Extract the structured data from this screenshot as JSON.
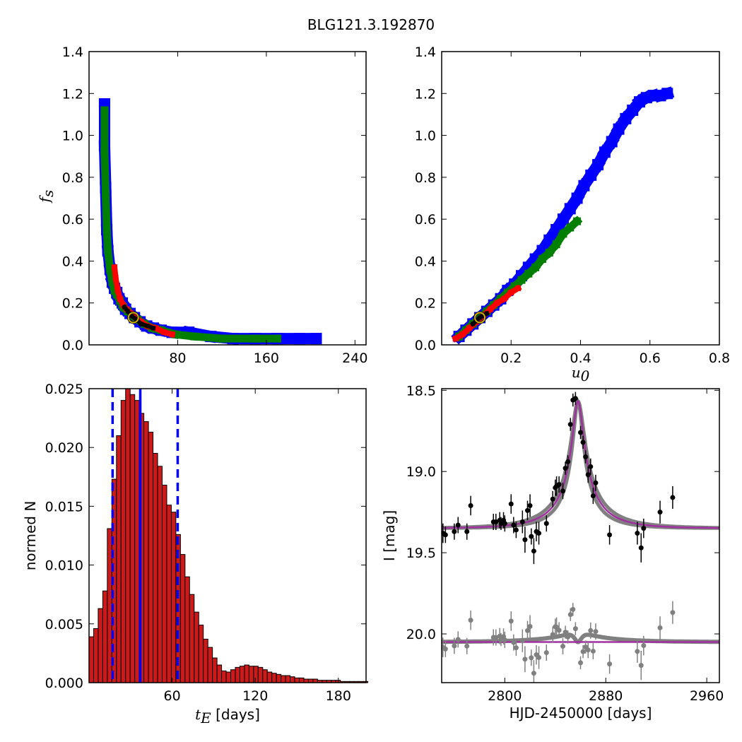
{
  "figure_title": "BLG121.3.192870",
  "colors": {
    "blue": "#0000ff",
    "green": "#007f00",
    "red": "#ff0000",
    "black": "#000000",
    "gray": "#808080",
    "magenta": "#a0309f",
    "hist_fill": "#cc1a1a",
    "gold": "#d4b000"
  },
  "chart_data": [
    {
      "id": "fs_vs_tE",
      "type": "heatmap",
      "xlabel": "",
      "ylabel": "f",
      "ylabel_sub": "s",
      "xlim": [
        0,
        250
      ],
      "ylim": [
        0,
        1.4
      ],
      "xticks": [
        80,
        160,
        240
      ],
      "yticks": [
        0.0,
        0.2,
        0.4,
        0.6,
        0.8,
        1.0,
        1.2,
        1.4
      ],
      "best_fit": [
        40,
        0.13
      ],
      "levels": [
        {
          "name": "blue",
          "color": "blue",
          "points": [
            [
              14,
              1.15
            ],
            [
              14,
              0.95
            ],
            [
              15,
              0.75
            ],
            [
              16,
              0.55
            ],
            [
              17,
              0.45
            ],
            [
              19,
              0.36
            ],
            [
              21,
              0.3
            ],
            [
              23,
              0.27
            ],
            [
              25,
              0.25
            ],
            [
              27,
              0.22
            ],
            [
              30,
              0.2
            ],
            [
              33,
              0.17
            ],
            [
              37,
              0.15
            ],
            [
              41,
              0.13
            ],
            [
              46,
              0.11
            ],
            [
              52,
              0.09
            ],
            [
              58,
              0.08
            ],
            [
              65,
              0.07
            ],
            [
              75,
              0.06
            ],
            [
              90,
              0.06
            ],
            [
              110,
              0.04
            ],
            [
              130,
              0.03
            ],
            [
              150,
              0.03
            ],
            [
              170,
              0.03
            ],
            [
              190,
              0.03
            ],
            [
              205,
              0.03
            ]
          ]
        },
        {
          "name": "green",
          "color": "green",
          "points": [
            [
              14,
              1.12
            ],
            [
              14,
              0.92
            ],
            [
              15,
              0.72
            ],
            [
              16,
              0.55
            ],
            [
              17,
              0.45
            ],
            [
              19,
              0.36
            ],
            [
              21,
              0.3
            ],
            [
              23,
              0.26
            ],
            [
              25,
              0.24
            ],
            [
              28,
              0.21
            ],
            [
              31,
              0.18
            ],
            [
              35,
              0.16
            ],
            [
              39,
              0.14
            ],
            [
              44,
              0.12
            ],
            [
              50,
              0.1
            ],
            [
              57,
              0.08
            ],
            [
              65,
              0.07
            ],
            [
              78,
              0.05
            ],
            [
              95,
              0.04
            ],
            [
              120,
              0.03
            ],
            [
              150,
              0.03
            ],
            [
              170,
              0.03
            ]
          ]
        },
        {
          "name": "red",
          "color": "red",
          "points": [
            [
              23,
              0.37
            ],
            [
              24,
              0.32
            ],
            [
              26,
              0.26
            ],
            [
              28,
              0.22
            ],
            [
              31,
              0.19
            ],
            [
              34,
              0.17
            ],
            [
              38,
              0.15
            ],
            [
              42,
              0.13
            ],
            [
              47,
              0.11
            ],
            [
              53,
              0.09
            ],
            [
              60,
              0.08
            ],
            [
              68,
              0.06
            ],
            [
              75,
              0.05
            ]
          ]
        },
        {
          "name": "black",
          "color": "black",
          "points": [
            [
              32,
              0.18
            ],
            [
              35,
              0.16
            ],
            [
              38,
              0.14
            ],
            [
              43,
              0.12
            ],
            [
              47,
              0.1
            ],
            [
              53,
              0.09
            ],
            [
              58,
              0.08
            ]
          ]
        }
      ]
    },
    {
      "id": "fs_vs_u0",
      "type": "heatmap",
      "xlabel": "u",
      "xlabel_sub": "0",
      "ylabel": "",
      "xlim": [
        0,
        0.8
      ],
      "ylim": [
        0,
        1.4
      ],
      "xticks": [
        0.2,
        0.4,
        0.6,
        0.8
      ],
      "yticks": [
        0.0,
        0.2,
        0.4,
        0.6,
        0.8,
        1.0,
        1.2,
        1.4
      ],
      "best_fit": [
        0.11,
        0.13
      ],
      "levels": [
        {
          "name": "blue",
          "color": "blue",
          "points": [
            [
              0.05,
              0.04
            ],
            [
              0.07,
              0.07
            ],
            [
              0.09,
              0.1
            ],
            [
              0.11,
              0.13
            ],
            [
              0.13,
              0.16
            ],
            [
              0.15,
              0.19
            ],
            [
              0.17,
              0.22
            ],
            [
              0.19,
              0.26
            ],
            [
              0.21,
              0.29
            ],
            [
              0.23,
              0.33
            ],
            [
              0.25,
              0.37
            ],
            [
              0.27,
              0.41
            ],
            [
              0.29,
              0.45
            ],
            [
              0.31,
              0.5
            ],
            [
              0.33,
              0.55
            ],
            [
              0.35,
              0.6
            ],
            [
              0.37,
              0.65
            ],
            [
              0.39,
              0.7
            ],
            [
              0.41,
              0.76
            ],
            [
              0.43,
              0.81
            ],
            [
              0.45,
              0.86
            ],
            [
              0.47,
              0.92
            ],
            [
              0.49,
              0.97
            ],
            [
              0.51,
              1.03
            ],
            [
              0.53,
              1.08
            ],
            [
              0.55,
              1.12
            ],
            [
              0.57,
              1.16
            ],
            [
              0.59,
              1.18
            ],
            [
              0.61,
              1.19
            ],
            [
              0.63,
              1.19
            ],
            [
              0.65,
              1.2
            ]
          ]
        },
        {
          "name": "green",
          "color": "green",
          "points": [
            [
              0.05,
              0.04
            ],
            [
              0.07,
              0.07
            ],
            [
              0.09,
              0.1
            ],
            [
              0.11,
              0.13
            ],
            [
              0.13,
              0.16
            ],
            [
              0.15,
              0.19
            ],
            [
              0.17,
              0.22
            ],
            [
              0.19,
              0.25
            ],
            [
              0.21,
              0.28
            ],
            [
              0.23,
              0.31
            ],
            [
              0.25,
              0.34
            ],
            [
              0.27,
              0.37
            ],
            [
              0.29,
              0.41
            ],
            [
              0.31,
              0.44
            ],
            [
              0.33,
              0.48
            ],
            [
              0.35,
              0.53
            ],
            [
              0.37,
              0.56
            ],
            [
              0.39,
              0.59
            ]
          ]
        },
        {
          "name": "red",
          "color": "red",
          "points": [
            [
              0.04,
              0.03
            ],
            [
              0.06,
              0.05
            ],
            [
              0.08,
              0.08
            ],
            [
              0.1,
              0.11
            ],
            [
              0.12,
              0.14
            ],
            [
              0.14,
              0.17
            ],
            [
              0.16,
              0.2
            ],
            [
              0.18,
              0.22
            ],
            [
              0.2,
              0.25
            ],
            [
              0.22,
              0.27
            ]
          ]
        },
        {
          "name": "black",
          "color": "black",
          "points": [
            [
              0.09,
              0.1
            ],
            [
              0.11,
              0.13
            ],
            [
              0.13,
              0.15
            ]
          ]
        }
      ]
    },
    {
      "id": "tE_histogram",
      "type": "bar",
      "xlabel": "t",
      "xlabel_sub": "E",
      "xlabel_suffix": " [days]",
      "ylabel": "normed N",
      "xlim": [
        0,
        200
      ],
      "ylim": [
        0,
        0.025
      ],
      "xticks": [
        60,
        120,
        180
      ],
      "yticks": [
        0.0,
        0.005,
        0.01,
        0.015,
        0.02,
        0.025
      ],
      "ytick_labels": [
        "0.000",
        "0.005",
        "0.010",
        "0.015",
        "0.020",
        "0.025"
      ],
      "bin_width": 3.3,
      "bin_start": 0,
      "values": [
        0.0039,
        0.0046,
        0.0063,
        0.0078,
        0.0131,
        0.0173,
        0.021,
        0.024,
        0.025,
        0.0245,
        0.024,
        0.0229,
        0.0222,
        0.0213,
        0.0195,
        0.0184,
        0.0168,
        0.0151,
        0.0145,
        0.0126,
        0.0109,
        0.009,
        0.0075,
        0.006,
        0.0049,
        0.0037,
        0.003,
        0.0021,
        0.0015,
        0.001,
        0.0009,
        0.0011,
        0.0013,
        0.0014,
        0.0015,
        0.0014,
        0.0014,
        0.0013,
        0.0011,
        0.0009,
        0.0008,
        0.0007,
        0.0006,
        0.0006,
        0.0005,
        0.0004,
        0.0004,
        0.0003,
        0.0003,
        0.0003,
        0.0002,
        0.0002,
        0.0002,
        0.0002,
        0.0002,
        0.0001,
        0.0001,
        0.0001,
        0.0001,
        0.0001,
        0.0001
      ],
      "median_line": 37,
      "dashed_lines": [
        17,
        64
      ]
    },
    {
      "id": "light_curve",
      "type": "scatter",
      "xlabel": "HJD-2450000 [days]",
      "ylabel": "I [mag]",
      "xlim": [
        2750,
        2970
      ],
      "ylim": [
        20.3,
        18.49
      ],
      "xticks": [
        2800,
        2880,
        2960
      ],
      "yticks": [
        18.5,
        19.0,
        19.5,
        20.0
      ],
      "model_peak": {
        "t0": 2858,
        "tE": 37,
        "u0": 0.11,
        "base_mag": 19.35,
        "fs": 0.13
      },
      "residual_offset": 0.7,
      "observations": [
        [
          2751,
          19.38,
          0.06
        ],
        [
          2753,
          19.39,
          0.05
        ],
        [
          2760,
          19.37,
          0.05
        ],
        [
          2763,
          19.33,
          0.05
        ],
        [
          2770,
          19.37,
          0.05
        ],
        [
          2773,
          19.21,
          0.06
        ],
        [
          2791,
          19.31,
          0.05
        ],
        [
          2793,
          19.31,
          0.05
        ],
        [
          2796,
          19.3,
          0.05
        ],
        [
          2797,
          19.32,
          0.04
        ],
        [
          2799,
          19.3,
          0.05
        ],
        [
          2800,
          19.32,
          0.05
        ],
        [
          2805,
          19.2,
          0.06
        ],
        [
          2807,
          19.33,
          0.05
        ],
        [
          2809,
          19.36,
          0.05
        ],
        [
          2814,
          19.31,
          0.07
        ],
        [
          2816,
          19.42,
          0.08
        ],
        [
          2818,
          19.24,
          0.06
        ],
        [
          2820,
          19.21,
          0.07
        ],
        [
          2821,
          19.4,
          0.05
        ],
        [
          2823,
          19.49,
          0.08
        ],
        [
          2825,
          19.37,
          0.06
        ],
        [
          2827,
          19.38,
          0.07
        ],
        [
          2833,
          19.32,
          0.05
        ],
        [
          2838,
          19.17,
          0.05
        ],
        [
          2840,
          19.1,
          0.05
        ],
        [
          2841,
          19.09,
          0.06
        ],
        [
          2843,
          19.08,
          0.05
        ],
        [
          2846,
          19.12,
          0.05
        ],
        [
          2848,
          18.98,
          0.04
        ],
        [
          2850,
          18.94,
          0.04
        ],
        [
          2852,
          18.71,
          0.04
        ],
        [
          2854,
          18.56,
          0.04
        ],
        [
          2856,
          18.55,
          0.04
        ],
        [
          2860,
          18.76,
          0.04
        ],
        [
          2862,
          18.82,
          0.04
        ],
        [
          2864,
          18.91,
          0.04
        ],
        [
          2866,
          19.02,
          0.05
        ],
        [
          2868,
          18.97,
          0.05
        ],
        [
          2870,
          19.15,
          0.05
        ],
        [
          2872,
          19.07,
          0.05
        ],
        [
          2883,
          19.39,
          0.06
        ],
        [
          2905,
          19.38,
          0.07
        ],
        [
          2908,
          19.47,
          0.09
        ],
        [
          2910,
          19.35,
          0.06
        ],
        [
          2923,
          19.25,
          0.07
        ],
        [
          2933,
          19.16,
          0.07
        ]
      ]
    }
  ]
}
